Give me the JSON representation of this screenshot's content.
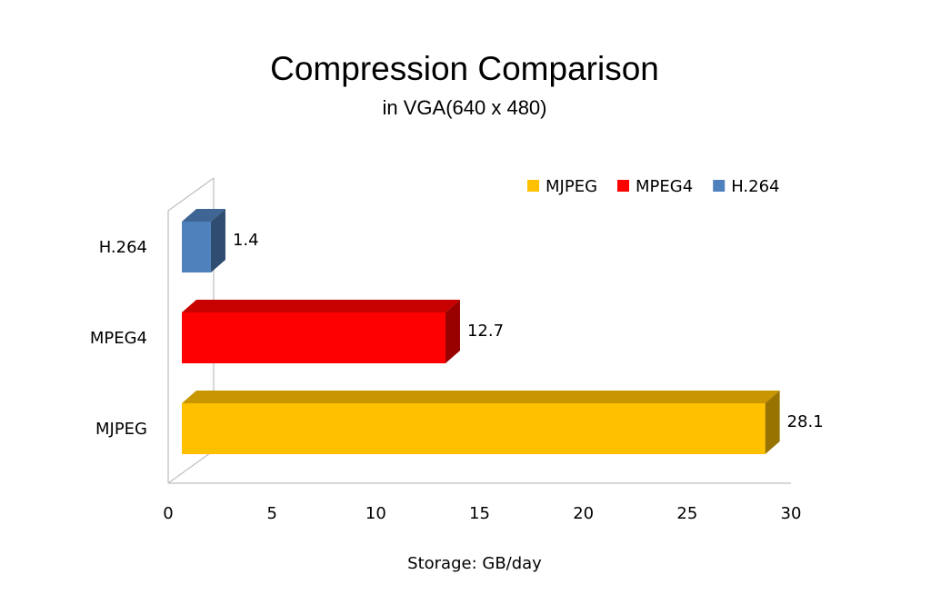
{
  "chart_data": {
    "type": "bar",
    "orientation": "horizontal",
    "title": "Compression Comparison",
    "subtitle": "in VGA(640 x 480)",
    "xlabel": "Storage: GB/day",
    "ylabel": "",
    "xlim": [
      0,
      30
    ],
    "xticks": [
      "0",
      "5",
      "10",
      "15",
      "20",
      "25",
      "30"
    ],
    "categories": [
      "MJPEG",
      "MPEG4",
      "H.264"
    ],
    "values": [
      28.1,
      12.7,
      1.4
    ],
    "data_labels": [
      "28.1",
      "12.7",
      "1.4"
    ],
    "colors": [
      "#FFC000",
      "#FF0000",
      "#4F81BD"
    ],
    "legend": {
      "placement": "top-right",
      "entries": [
        {
          "label": "MJPEG",
          "color": "#FFC000"
        },
        {
          "label": "MPEG4",
          "color": "#FF0000"
        },
        {
          "label": "H.264",
          "color": "#4F81BD"
        }
      ]
    },
    "grid": false,
    "style": "3d"
  }
}
